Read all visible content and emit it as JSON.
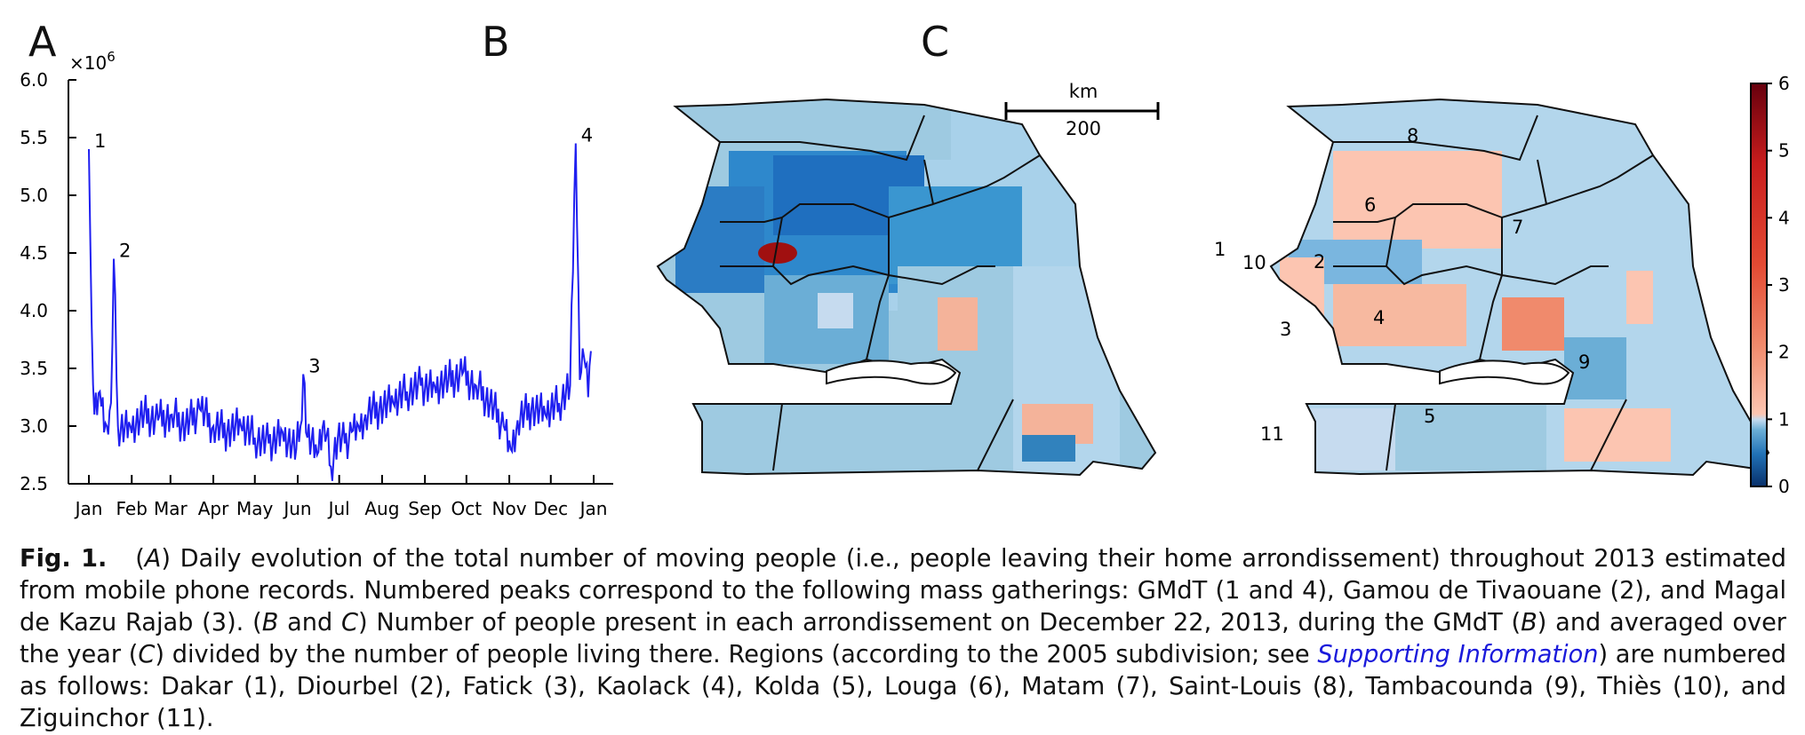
{
  "panels": {
    "a_letter": "A",
    "b_letter": "B",
    "c_letter": "C"
  },
  "chart_data": {
    "type": "line",
    "axis_multiplier": "×10",
    "axis_multiplier_exp": "6",
    "ylim": [
      2.5,
      6.0
    ],
    "y_ticks": [
      "2.5",
      "3.0",
      "3.5",
      "4.0",
      "4.5",
      "5.0",
      "5.5",
      "6.0"
    ],
    "x_ticks": [
      "Jan",
      "Feb",
      "Mar",
      "Apr",
      "May",
      "Jun",
      "Jul",
      "Aug",
      "Sep",
      "Oct",
      "Nov",
      "Dec",
      "Jan"
    ],
    "line_color": "#1f1ff0",
    "x_days": [
      0,
      2,
      4,
      8,
      13,
      16,
      18,
      21,
      30,
      40,
      50,
      60,
      70,
      80,
      90,
      100,
      110,
      120,
      130,
      140,
      150,
      153,
      155,
      158,
      165,
      170,
      175,
      180,
      185,
      190,
      195,
      200,
      210,
      220,
      230,
      240,
      250,
      260,
      270,
      280,
      290,
      300,
      305,
      310,
      320,
      330,
      340,
      345,
      348,
      352,
      355,
      358,
      361,
      363
    ],
    "y_values": [
      5.4,
      3.9,
      3.1,
      3.3,
      3.0,
      3.2,
      4.45,
      3.0,
      3.0,
      3.1,
      3.05,
      3.1,
      3.0,
      3.15,
      3.0,
      2.95,
      3.0,
      2.9,
      2.85,
      2.95,
      2.8,
      3.0,
      3.45,
      2.9,
      2.75,
      3.05,
      2.65,
      2.9,
      2.85,
      2.95,
      3.0,
      3.1,
      3.15,
      3.2,
      3.3,
      3.35,
      3.35,
      3.4,
      3.45,
      3.35,
      3.2,
      3.0,
      2.8,
      3.05,
      3.15,
      3.1,
      3.2,
      3.3,
      3.35,
      5.45,
      3.4,
      3.6,
      3.25,
      3.65
    ],
    "peaks": [
      {
        "label": "1",
        "x_day": 0,
        "value": 5.4
      },
      {
        "label": "2",
        "x_day": 18,
        "value": 4.45
      },
      {
        "label": "3",
        "x_day": 155,
        "value": 3.45
      },
      {
        "label": "4",
        "x_day": 352,
        "value": 5.45
      }
    ]
  },
  "map_b": {
    "scale_unit": "km",
    "scale_value": "200"
  },
  "map_c": {
    "region_labels": [
      "1",
      "2",
      "3",
      "4",
      "5",
      "6",
      "7",
      "8",
      "9",
      "10",
      "11"
    ]
  },
  "colorbar": {
    "ticks": [
      "0",
      "1",
      "2",
      "3",
      "4",
      "5",
      "6"
    ],
    "colors": [
      "#08306b",
      "#2171b5",
      "#6baed6",
      "#c6dbef",
      "#fcc5b1",
      "#f08a6c",
      "#e34a33",
      "#c81d1d",
      "#67000d"
    ]
  },
  "caption": {
    "fig_label": "Fig. 1.",
    "text_1": "(",
    "a_italic": "A",
    "text_2": ") Daily evolution of the total number of moving people (i.e., people leaving their home arrondissement) throughout 2013 estimated from mobile phone records. Numbered peaks correspond to the following mass gatherings: GMdT (1 and 4), Gamou de Tivaouane (2), and Magal de Kazu Rajab (3). (",
    "b_italic": "B",
    "text_3": " and ",
    "c_italic": "C",
    "text_4": ") Number of people present in each arrondissement on December 22, 2013, during the GMdT (",
    "b2_italic": "B",
    "text_5": ") and averaged over the year (",
    "c2_italic": "C",
    "text_6": ") divided by the number of people living there. Regions (according to the 2005 subdivision; see ",
    "link": "Supporting Information",
    "text_7": ") are numbered as follows: Dakar (1), Diourbel (2), Fatick (3), Kaolack (4), Kolda (5), Louga (6), Matam (7), Saint-Louis (8), Tambacounda (9), Thiès (10), and Ziguinchor (11)."
  }
}
